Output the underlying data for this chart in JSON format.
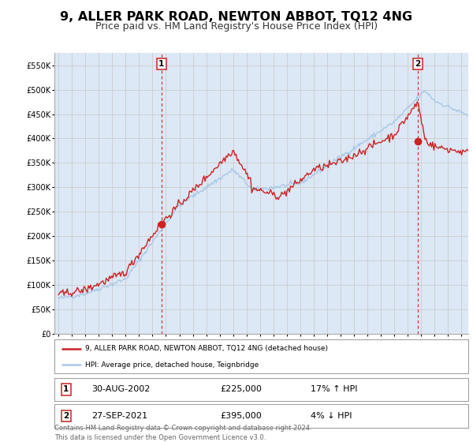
{
  "title": "9, ALLER PARK ROAD, NEWTON ABBOT, TQ12 4NG",
  "subtitle": "Price paid vs. HM Land Registry's House Price Index (HPI)",
  "title_fontsize": 11.5,
  "subtitle_fontsize": 9,
  "hpi_color": "#a8c8e8",
  "price_color": "#cc2222",
  "marker_color": "#cc2222",
  "vline_color": "#cc2222",
  "grid_color": "#cccccc",
  "plot_bg_color": "#dce8f5",
  "ylim": [
    0,
    575000
  ],
  "xlim_start": 1994.7,
  "xlim_end": 2025.5,
  "yticks": [
    0,
    50000,
    100000,
    150000,
    200000,
    250000,
    300000,
    350000,
    400000,
    450000,
    500000,
    550000
  ],
  "ytick_labels": [
    "£0",
    "£50K",
    "£100K",
    "£150K",
    "£200K",
    "£250K",
    "£300K",
    "£350K",
    "£400K",
    "£450K",
    "£500K",
    "£550K"
  ],
  "xticks": [
    1995,
    1996,
    1997,
    1998,
    1999,
    2000,
    2001,
    2002,
    2003,
    2004,
    2005,
    2006,
    2007,
    2008,
    2009,
    2010,
    2011,
    2012,
    2013,
    2014,
    2015,
    2016,
    2017,
    2018,
    2019,
    2020,
    2021,
    2022,
    2023,
    2024,
    2025
  ],
  "sale1_x": 2002.664,
  "sale1_y": 225000,
  "sale1_label": "1",
  "sale1_date": "30-AUG-2002",
  "sale1_price": "£225,000",
  "sale1_hpi": "17% ↑ HPI",
  "sale2_x": 2021.747,
  "sale2_y": 395000,
  "sale2_label": "2",
  "sale2_date": "27-SEP-2021",
  "sale2_price": "£395,000",
  "sale2_hpi": "4% ↓ HPI",
  "legend_line1": "9, ALLER PARK ROAD, NEWTON ABBOT, TQ12 4NG (detached house)",
  "legend_line2": "HPI: Average price, detached house, Teignbridge",
  "footer": "Contains HM Land Registry data © Crown copyright and database right 2024.\nThis data is licensed under the Open Government Licence v3.0."
}
